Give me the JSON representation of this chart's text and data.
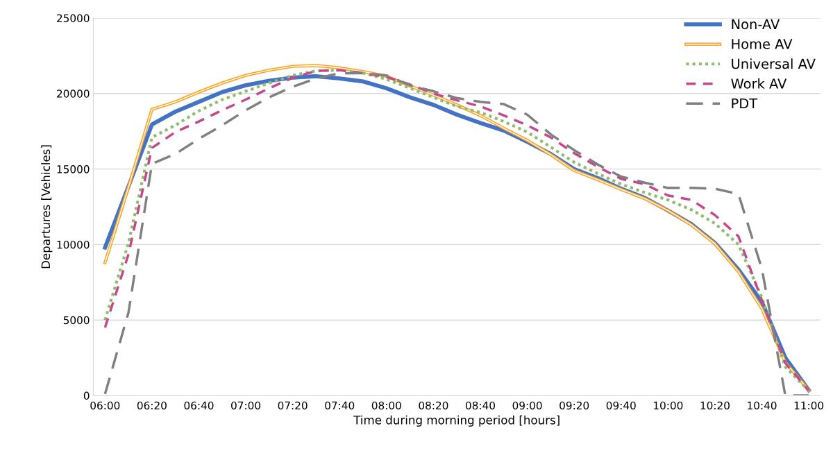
{
  "chart_data": {
    "type": "line",
    "xlabel": "Time during morning period [hours]",
    "ylabel": "Departures [Vehicles]",
    "categories": [
      "06:00",
      null,
      "06:20",
      null,
      "06:40",
      null,
      "07:00",
      null,
      "07:20",
      null,
      "07:40",
      null,
      "08:00",
      null,
      "08:20",
      null,
      "08:40",
      null,
      "09:00",
      null,
      "09:20",
      null,
      "09:40",
      null,
      "10:00",
      null,
      "10:20",
      null,
      "10:40",
      null,
      "11:00"
    ],
    "ylim": [
      0,
      25000
    ],
    "yticks": [
      0,
      5000,
      10000,
      15000,
      20000,
      25000
    ],
    "grid": "y",
    "legend": "top right",
    "series": [
      {
        "name": "Non-AV",
        "color": "#4472c4",
        "line_style": "solid",
        "values": [
          9800,
          13850,
          17950,
          18800,
          19450,
          20100,
          20550,
          20850,
          21050,
          21150,
          21000,
          20800,
          20350,
          19750,
          19250,
          18600,
          18050,
          17550,
          16800,
          16000,
          15000,
          14400,
          13700,
          13100,
          12250,
          11350,
          10100,
          8350,
          6200,
          2500,
          350
        ]
      },
      {
        "name": "Home AV",
        "color": "#ffa11c",
        "line_style": "solid",
        "values": [
          8800,
          13800,
          18950,
          19450,
          20100,
          20700,
          21200,
          21550,
          21800,
          21850,
          21700,
          21450,
          21150,
          20500,
          19900,
          19250,
          18550,
          17700,
          16900,
          15950,
          14900,
          14300,
          13650,
          13050,
          12250,
          11300,
          10050,
          8200,
          5750,
          2200,
          350
        ]
      },
      {
        "name": "Universal AV",
        "color": "#8fbd6f",
        "line_style": "dotted",
        "values": [
          5000,
          10100,
          17100,
          17900,
          18850,
          19600,
          20150,
          20700,
          21200,
          21500,
          21550,
          21350,
          20950,
          20350,
          19750,
          19150,
          18750,
          18150,
          17450,
          16450,
          15450,
          14700,
          14000,
          13450,
          12950,
          12300,
          11400,
          10000,
          6500,
          1900,
          300
        ]
      },
      {
        "name": "Work AV",
        "color": "#c7478c",
        "line_style": "dashed",
        "values": [
          4500,
          9350,
          16400,
          17450,
          18150,
          18900,
          19600,
          20350,
          21050,
          21500,
          21550,
          21350,
          21100,
          20600,
          20000,
          19550,
          19150,
          18550,
          17900,
          17100,
          16050,
          15150,
          14350,
          14000,
          13250,
          12950,
          11950,
          10550,
          6300,
          2150,
          350
        ]
      },
      {
        "name": "PDT",
        "color": "#808080",
        "line_style": "dashed",
        "values": [
          100,
          5500,
          15350,
          16000,
          17000,
          17900,
          18900,
          19750,
          20450,
          21000,
          21350,
          21350,
          21200,
          20550,
          20150,
          19700,
          19450,
          19300,
          18600,
          17300,
          16250,
          15300,
          14500,
          14100,
          13750,
          13750,
          13700,
          13350,
          8400,
          0,
          0
        ]
      }
    ]
  }
}
